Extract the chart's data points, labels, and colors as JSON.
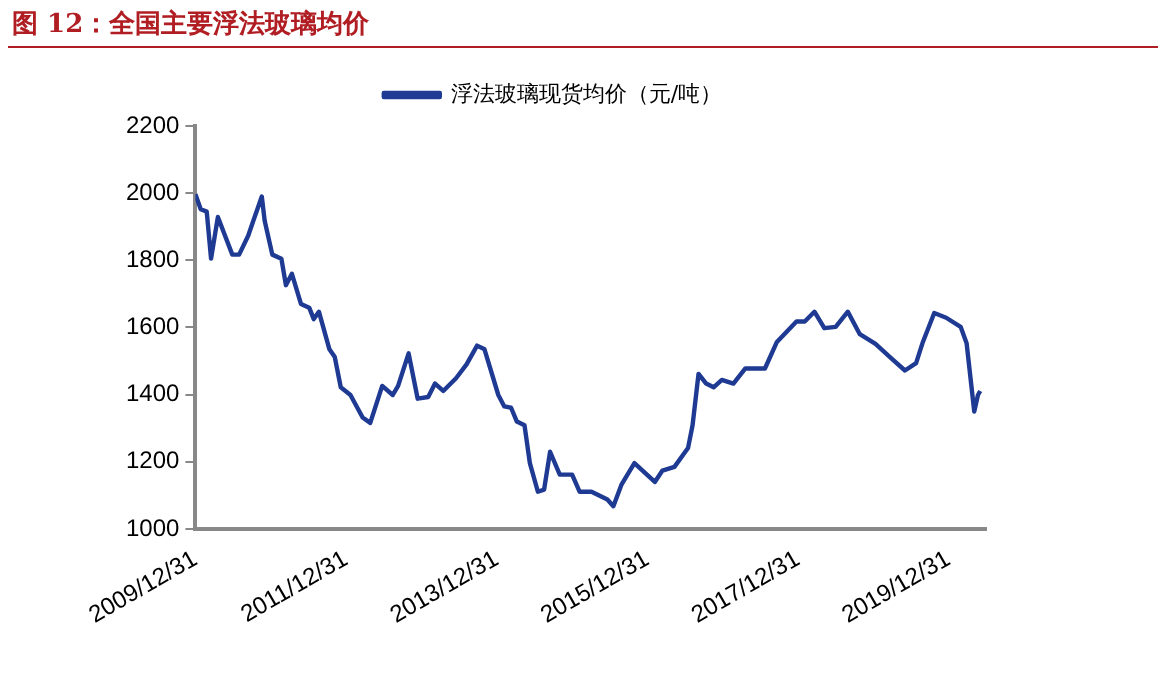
{
  "chart_data": {
    "type": "line",
    "title": "图 12：全国主要浮法玻璃均价",
    "legend": "top",
    "x": [
      "2009-12-31",
      "2010-01-26",
      "2010-02-24",
      "2010-03-17",
      "2010-04-19",
      "2010-06-28",
      "2010-07-31",
      "2010-09-13",
      "2010-10-08",
      "2010-11-18",
      "2010-12-02",
      "2011-01-08",
      "2011-02-21",
      "2011-03-15",
      "2011-04-13",
      "2011-05-27",
      "2011-07-06",
      "2011-07-28",
      "2011-08-22",
      "2011-10-12",
      "2011-11-07",
      "2011-12-06",
      "2012-01-22",
      "2012-03-21",
      "2012-04-27",
      "2012-06-24",
      "2012-08-14",
      "2012-09-09",
      "2012-10-30",
      "2012-12-13",
      "2013-02-02",
      "2013-03-07",
      "2013-04-16",
      "2013-06-17",
      "2013-08-07",
      "2013-09-27",
      "2013-11-02",
      "2014-01-08",
      "2014-02-06",
      "2014-03-11",
      "2014-04-08",
      "2014-05-15",
      "2014-06-10",
      "2014-07-19",
      "2014-08-18",
      "2014-09-16",
      "2014-11-02",
      "2015-01-01",
      "2015-02-06",
      "2015-04-05",
      "2015-06-21",
      "2015-07-20",
      "2015-08-29",
      "2015-10-30",
      "2016-02-06",
      "2016-03-14",
      "2016-05-11",
      "2016-07-16",
      "2016-08-07",
      "2016-09-05",
      "2016-10-12",
      "2016-11-17",
      "2016-12-27",
      "2017-02-21",
      "2017-04-20",
      "2017-07-24",
      "2017-09-20",
      "2017-12-24",
      "2018-02-02",
      "2018-03-21",
      "2018-05-08",
      "2018-07-02",
      "2018-08-30",
      "2018-10-27",
      "2019-01-11",
      "2019-03-29",
      "2019-06-03",
      "2019-07-27",
      "2019-08-29",
      "2019-10-23",
      "2019-12-20",
      "2020-02-28",
      "2020-03-28",
      "2020-05-04",
      "2020-05-22",
      "2020-06-02"
    ],
    "series": [
      {
        "name": "浮法玻璃现货均价（元/吨）",
        "color": "#1f3a93",
        "values": [
          1997,
          1952,
          1945,
          1805,
          1929,
          1817,
          1817,
          1873,
          1918,
          1990,
          1918,
          1817,
          1805,
          1726,
          1760,
          1670,
          1659,
          1625,
          1647,
          1535,
          1512,
          1422,
          1399,
          1332,
          1316,
          1426,
          1399,
          1426,
          1523,
          1388,
          1393,
          1433,
          1411,
          1449,
          1490,
          1546,
          1535,
          1399,
          1365,
          1361,
          1320,
          1309,
          1196,
          1111,
          1117,
          1230,
          1162,
          1162,
          1111,
          1111,
          1088,
          1068,
          1133,
          1196,
          1140,
          1174,
          1185,
          1241,
          1309,
          1462,
          1433,
          1422,
          1444,
          1433,
          1478,
          1478,
          1557,
          1618,
          1618,
          1647,
          1598,
          1602,
          1647,
          1580,
          1551,
          1508,
          1472,
          1494,
          1557,
          1643,
          1629,
          1602,
          1553,
          1350,
          1399,
          1411
        ]
      }
    ],
    "xlim": [
      "2009-12-31",
      "2020-06-30"
    ],
    "xticks": [
      {
        "value": "2009-12-31",
        "label": "2009/12/31"
      },
      {
        "value": "2011-12-31",
        "label": "2011/12/31"
      },
      {
        "value": "2013-12-31",
        "label": "2013/12/31"
      },
      {
        "value": "2015-12-31",
        "label": "2015/12/31"
      },
      {
        "value": "2017-12-31",
        "label": "2017/12/31"
      },
      {
        "value": "2019-12-31",
        "label": "2019/12/31"
      }
    ],
    "ylim": [
      1000,
      2200
    ],
    "yticks": [
      1000,
      1200,
      1400,
      1600,
      1800,
      2000,
      2200
    ]
  }
}
